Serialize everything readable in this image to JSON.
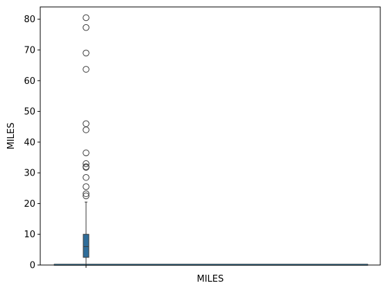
{
  "chart_data": {
    "type": "boxplot",
    "xlabel": "MILES",
    "ylabel": "MILES",
    "ylim": [
      0,
      84
    ],
    "y_ticks": [
      0,
      10,
      20,
      30,
      40,
      50,
      60,
      70,
      80
    ],
    "grid": false,
    "box": {
      "whisker_low": 0.5,
      "q1": 2.5,
      "median": 6.0,
      "q3": 10.0,
      "whisker_high": 20.5,
      "color": "#2f6d9a"
    },
    "outliers": [
      80.5,
      77.3,
      69.0,
      63.7,
      46.0,
      44.0,
      36.5,
      33.0,
      32.0,
      31.8,
      28.5,
      25.5,
      23.2,
      22.5
    ],
    "baseline_series": {
      "x_range": [
        0,
        1
      ],
      "value": 0.05,
      "color": "#4aa5d6"
    }
  }
}
